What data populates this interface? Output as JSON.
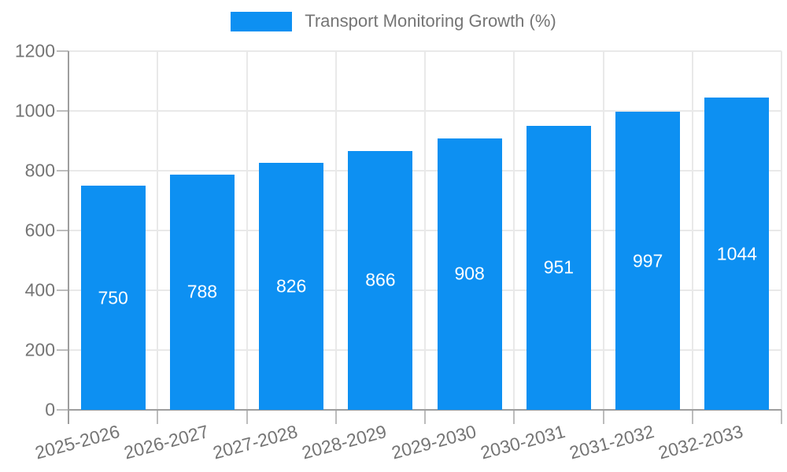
{
  "legend": {
    "label": "Transport Monitoring Growth (%)"
  },
  "chart_data": {
    "type": "bar",
    "title": "Transport Monitoring Growth (%)",
    "categories": [
      "2025-2026",
      "2026-2027",
      "2027-2028",
      "2028-2029",
      "2029-2030",
      "2030-2031",
      "2031-2032",
      "2032-2033"
    ],
    "values": [
      750,
      788,
      826,
      866,
      908,
      951,
      997,
      1044
    ],
    "xlabel": "",
    "ylabel": "",
    "ylim": [
      0,
      1200
    ],
    "yticks": [
      0,
      200,
      400,
      600,
      800,
      1000,
      1200
    ],
    "grid": true,
    "legend_position": "top-center",
    "colors": {
      "bar": "#0D90F2",
      "value_label": "#FFFFFF",
      "axis_text": "#757575",
      "gridline": "#E9E9E9",
      "axis_line": "#9E9E9E",
      "tick": "#BDBDBD"
    }
  }
}
